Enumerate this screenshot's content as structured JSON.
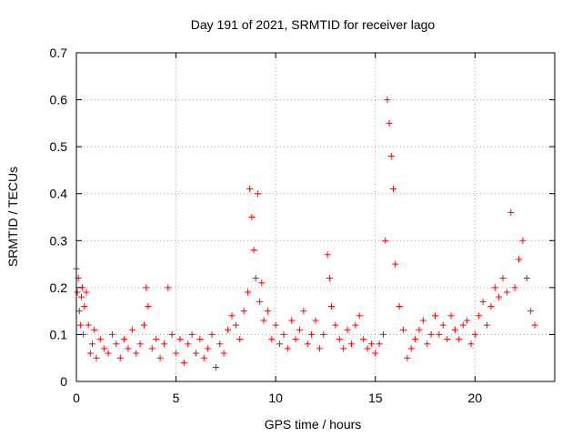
{
  "chart_data": {
    "type": "scatter",
    "title": "Day 191 of 2021, SRMTID for receiver lago",
    "xlabel": "GPS time / hours",
    "ylabel": "SRMTID / TECUs",
    "xlim": [
      0,
      24
    ],
    "ylim": [
      0,
      0.7
    ],
    "x_ticks": [
      0,
      5,
      10,
      15,
      20
    ],
    "y_ticks": [
      0,
      0.1,
      0.2,
      0.3,
      0.4,
      0.5,
      0.6,
      0.7
    ],
    "x_tick_labels": [
      "0",
      "5",
      "10",
      "15",
      "20"
    ],
    "y_tick_labels": [
      "0",
      "0.1",
      "0.2",
      "0.3",
      "0.4",
      "0.5",
      "0.6",
      "0.7"
    ],
    "grid": true,
    "marker": "+",
    "series": [
      {
        "name": "SRMTID",
        "color": "#ff0000",
        "x": [
          0.0,
          0.05,
          0.1,
          0.15,
          0.2,
          0.25,
          0.3,
          0.35,
          0.4,
          0.5,
          0.6,
          0.7,
          0.8,
          0.9,
          1.0,
          1.2,
          1.4,
          1.6,
          1.8,
          2.0,
          2.2,
          2.4,
          2.6,
          2.8,
          3.0,
          3.2,
          3.4,
          3.5,
          3.6,
          3.8,
          4.0,
          4.2,
          4.4,
          4.6,
          4.8,
          5.0,
          5.2,
          5.4,
          5.6,
          5.8,
          6.0,
          6.2,
          6.4,
          6.6,
          6.8,
          7.0,
          7.2,
          7.4,
          7.6,
          7.8,
          8.0,
          8.2,
          8.4,
          8.6,
          8.7,
          8.8,
          8.9,
          9.0,
          9.1,
          9.2,
          9.3,
          9.4,
          9.6,
          9.8,
          10.0,
          10.2,
          10.4,
          10.6,
          10.8,
          11.0,
          11.2,
          11.4,
          11.6,
          11.8,
          12.0,
          12.2,
          12.4,
          12.6,
          12.7,
          12.8,
          13.0,
          13.2,
          13.4,
          13.6,
          13.8,
          14.0,
          14.2,
          14.4,
          14.6,
          14.8,
          15.0,
          15.2,
          15.4,
          15.5,
          15.6,
          15.7,
          15.8,
          15.9,
          16.0,
          16.2,
          16.4,
          16.6,
          16.8,
          17.0,
          17.2,
          17.4,
          17.6,
          17.8,
          18.0,
          18.2,
          18.4,
          18.6,
          18.8,
          19.0,
          19.2,
          19.4,
          19.6,
          19.8,
          20.0,
          20.2,
          20.4,
          20.6,
          20.8,
          21.0,
          21.2,
          21.4,
          21.6,
          21.8,
          22.0,
          22.2,
          22.4,
          22.6,
          22.8,
          23.0
        ],
        "y": [
          0.24,
          0.19,
          0.22,
          0.15,
          0.12,
          0.18,
          0.2,
          0.1,
          0.16,
          0.19,
          0.12,
          0.06,
          0.08,
          0.11,
          0.05,
          0.09,
          0.07,
          0.06,
          0.1,
          0.08,
          0.05,
          0.09,
          0.07,
          0.11,
          0.06,
          0.08,
          0.12,
          0.2,
          0.16,
          0.07,
          0.09,
          0.05,
          0.08,
          0.2,
          0.1,
          0.06,
          0.09,
          0.04,
          0.08,
          0.1,
          0.06,
          0.09,
          0.05,
          0.07,
          0.1,
          0.03,
          0.08,
          0.06,
          0.11,
          0.14,
          0.12,
          0.09,
          0.15,
          0.19,
          0.41,
          0.35,
          0.28,
          0.22,
          0.4,
          0.17,
          0.21,
          0.13,
          0.15,
          0.09,
          0.12,
          0.08,
          0.1,
          0.07,
          0.13,
          0.09,
          0.11,
          0.15,
          0.08,
          0.1,
          0.13,
          0.07,
          0.1,
          0.27,
          0.22,
          0.16,
          0.12,
          0.09,
          0.07,
          0.11,
          0.08,
          0.12,
          0.14,
          0.09,
          0.07,
          0.08,
          0.06,
          0.08,
          0.1,
          0.3,
          0.6,
          0.55,
          0.48,
          0.41,
          0.25,
          0.16,
          0.11,
          0.05,
          0.07,
          0.09,
          0.11,
          0.13,
          0.08,
          0.1,
          0.14,
          0.1,
          0.12,
          0.09,
          0.14,
          0.11,
          0.09,
          0.12,
          0.13,
          0.08,
          0.1,
          0.14,
          0.17,
          0.12,
          0.16,
          0.2,
          0.18,
          0.22,
          0.19,
          0.36,
          0.2,
          0.26,
          0.3,
          0.22,
          0.15,
          0.12
        ]
      }
    ]
  }
}
